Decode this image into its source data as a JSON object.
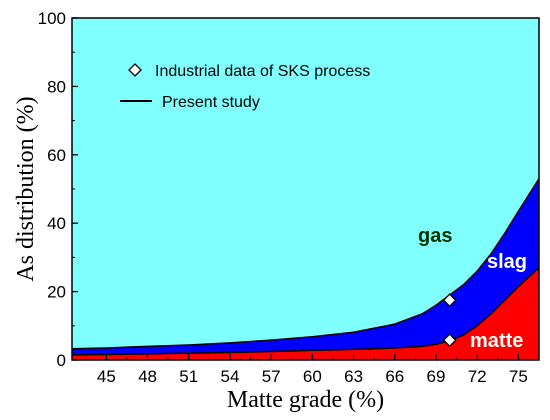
{
  "chart_data": {
    "type": "area",
    "xlabel": "Matte grade (%)",
    "ylabel": "As distribution (%)",
    "xlim": [
      42.5,
      76.5
    ],
    "ylim": [
      0,
      100
    ],
    "xticks": [
      45,
      48,
      51,
      54,
      57,
      60,
      63,
      66,
      69,
      72,
      75
    ],
    "yticks": [
      0,
      20,
      40,
      60,
      80,
      100
    ],
    "x": [
      42.5,
      45,
      48,
      51,
      54,
      57,
      60,
      63,
      66,
      68,
      69,
      70,
      71,
      72,
      73,
      74,
      75,
      76.5
    ],
    "series": [
      {
        "name": "matte",
        "color": "#ff0000",
        "values": [
          1.5,
          1.6,
          1.8,
          2.0,
          2.2,
          2.5,
          2.8,
          3.1,
          3.5,
          4.0,
          4.6,
          5.6,
          7.3,
          10.0,
          13.5,
          17.5,
          21.5,
          27.0
        ]
      },
      {
        "name": "slag",
        "color": "#0000ff",
        "values": [
          1.8,
          1.9,
          2.2,
          2.4,
          2.8,
          3.3,
          4.0,
          5.0,
          7.0,
          9.5,
          11.4,
          13.4,
          14.7,
          16.0,
          17.5,
          19.5,
          22.0,
          26.0
        ]
      },
      {
        "name": "gas",
        "color": "#80ffff",
        "values": [
          96.7,
          96.5,
          96.0,
          95.6,
          95.0,
          94.2,
          93.2,
          91.9,
          89.5,
          86.5,
          84.0,
          81.0,
          78.0,
          74.0,
          69.0,
          63.0,
          56.5,
          47.0
        ]
      }
    ],
    "industrial_points": [
      {
        "x": 70,
        "y": 5.8
      },
      {
        "x": 70,
        "y": 17.5
      }
    ],
    "legend": {
      "position": "top-left",
      "entries": [
        "Industrial data of SKS process",
        "Present study"
      ]
    },
    "region_labels": {
      "gas": {
        "text": "gas",
        "color": "#003300"
      },
      "slag": {
        "text": "slag",
        "color": "#ffffff"
      },
      "matte": {
        "text": "matte",
        "color": "#ffffff"
      }
    }
  }
}
